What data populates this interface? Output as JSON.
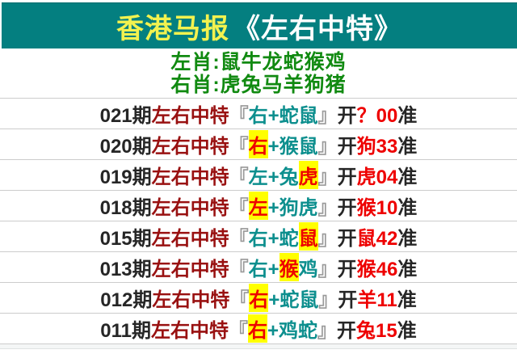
{
  "banner": {
    "title_yellow": "香港马报",
    "title_white": "《左右中特》"
  },
  "subheader": {
    "line1": "左肖:鼠牛龙蛇猴鸡",
    "line2": "右肖:虎兔马羊狗猪"
  },
  "rows": [
    {
      "issue": "021期",
      "label": "左右中特",
      "bracket_open": "『",
      "picks": [
        {
          "text": "右+蛇鼠",
          "highlight": false
        }
      ],
      "bracket_close": "』",
      "open_word": "开",
      "result": "？00",
      "verdict": "准"
    },
    {
      "issue": "020期",
      "label": "左右中特",
      "bracket_open": "『",
      "picks": [
        {
          "text": "右",
          "highlight": true
        },
        {
          "text": "+猴鼠",
          "highlight": false
        }
      ],
      "bracket_close": "』",
      "open_word": "开",
      "result": "狗33",
      "verdict": "准"
    },
    {
      "issue": "019期",
      "label": "左右中特",
      "bracket_open": "『",
      "picks": [
        {
          "text": "左+兔",
          "highlight": false
        },
        {
          "text": "虎",
          "highlight": true
        }
      ],
      "bracket_close": "』",
      "open_word": "开",
      "result": "虎04",
      "verdict": "准"
    },
    {
      "issue": "018期",
      "label": "左右中特",
      "bracket_open": "『",
      "picks": [
        {
          "text": "左",
          "highlight": true
        },
        {
          "text": "+狗虎",
          "highlight": false
        }
      ],
      "bracket_close": "』",
      "open_word": "开",
      "result": "猴10",
      "verdict": "准"
    },
    {
      "issue": "015期",
      "label": "左右中特",
      "bracket_open": "『",
      "picks": [
        {
          "text": "右+蛇",
          "highlight": false
        },
        {
          "text": "鼠",
          "highlight": true
        }
      ],
      "bracket_close": "』",
      "open_word": "开",
      "result": "鼠42",
      "verdict": "准"
    },
    {
      "issue": "013期",
      "label": "左右中特",
      "bracket_open": "『",
      "picks": [
        {
          "text": "右+",
          "highlight": false
        },
        {
          "text": "猴",
          "highlight": true
        },
        {
          "text": "鸡",
          "highlight": false
        }
      ],
      "bracket_close": "』",
      "open_word": "开",
      "result": "猴46",
      "verdict": "准"
    },
    {
      "issue": "012期",
      "label": "左右中特",
      "bracket_open": "『",
      "picks": [
        {
          "text": "右",
          "highlight": true
        },
        {
          "text": "+蛇鼠",
          "highlight": false
        }
      ],
      "bracket_close": "』",
      "open_word": "开",
      "result": "羊11",
      "verdict": "准"
    },
    {
      "issue": "011期",
      "label": "左右中特",
      "bracket_open": "『",
      "picks": [
        {
          "text": "右",
          "highlight": true
        },
        {
          "text": "+鸡蛇",
          "highlight": false
        }
      ],
      "bracket_close": "』",
      "open_word": "开",
      "result": "兔15",
      "verdict": "准"
    }
  ],
  "colors": {
    "banner_bg": "#047f80",
    "banner_top_line": "#016b6d",
    "title_yellow": "#f2f24f",
    "title_white": "#ffffff",
    "subheader_green": "#118a11",
    "issue_dark": "#262626",
    "label_maroon": "#991111",
    "bracket_gray": "#999999",
    "pick_teal": "#0d8f8e",
    "highlight_bg": "#ffff00",
    "result_red": "#ee0000",
    "row_separator": "#cccccc"
  }
}
